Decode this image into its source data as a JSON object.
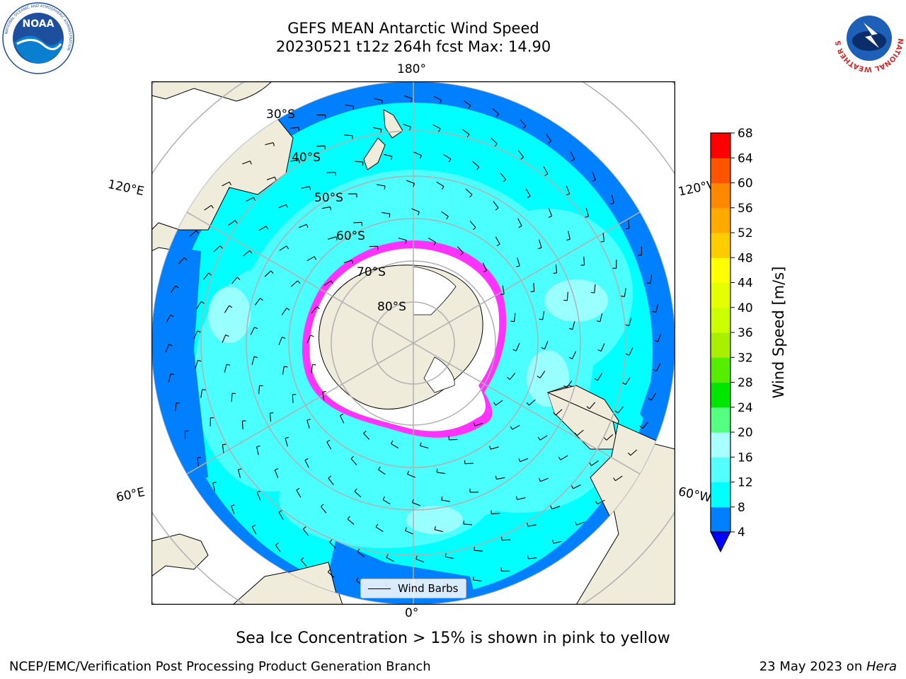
{
  "header": {
    "title_line1": "GEFS MEAN Antarctic Wind Speed",
    "title_line2": "20230521 t12z 264h fcst   Max: 14.90"
  },
  "map": {
    "projection": "south polar stereographic",
    "longitude_labels": {
      "top": "180°",
      "bottom": "0°",
      "upper_left": "120°E",
      "upper_right": "120°W",
      "lower_left": "60°E",
      "lower_right": "60°W"
    },
    "latitude_labels": [
      "30°S",
      "40°S",
      "50°S",
      "60°S",
      "70°S",
      "80°S"
    ],
    "legend": {
      "label": "Wind Barbs"
    },
    "colors": {
      "ocean_4_8": "#0080ff",
      "ocean_8_12": "#00ffff",
      "ocean_12_16": "#55ffff",
      "ocean_16_20": "#a8ffff",
      "land": "#efecdc",
      "ice_shelf": "#ffffff",
      "sea_ice_edge": "#ff33ff",
      "gridline": "#b0b0b0"
    }
  },
  "colorbar": {
    "label": "Wind Speed [m/s]",
    "ticks": [
      "4",
      "8",
      "12",
      "16",
      "20",
      "24",
      "28",
      "32",
      "36",
      "40",
      "44",
      "48",
      "52",
      "56",
      "60",
      "64",
      "68"
    ],
    "colors": [
      "#0080ff",
      "#00ffff",
      "#55ffff",
      "#a8ffff",
      "#55ff80",
      "#00e600",
      "#55ee00",
      "#aaee00",
      "#ccff00",
      "#e6ff00",
      "#ffff00",
      "#ffcc00",
      "#ffaa00",
      "#ff8800",
      "#ff5500",
      "#ff0000"
    ],
    "under_color": "#0000ff"
  },
  "caption": "Sea Ice Concentration > 15% is shown in pink to yellow",
  "footer": {
    "left": "NCEP/EMC/Verification Post Processing Product Generation Branch",
    "right_prefix": "23 May 2023 on ",
    "right_italic": "Hera"
  },
  "logos": {
    "left": {
      "icon": "noaa-logo",
      "text": "NOAA",
      "ring_text": "NATIONAL OCEANIC AND ATMOSPHERIC ADMINISTRATION"
    },
    "right": {
      "icon": "nws-logo",
      "ring_text": "NATIONAL WEATHER SERVICE"
    }
  }
}
